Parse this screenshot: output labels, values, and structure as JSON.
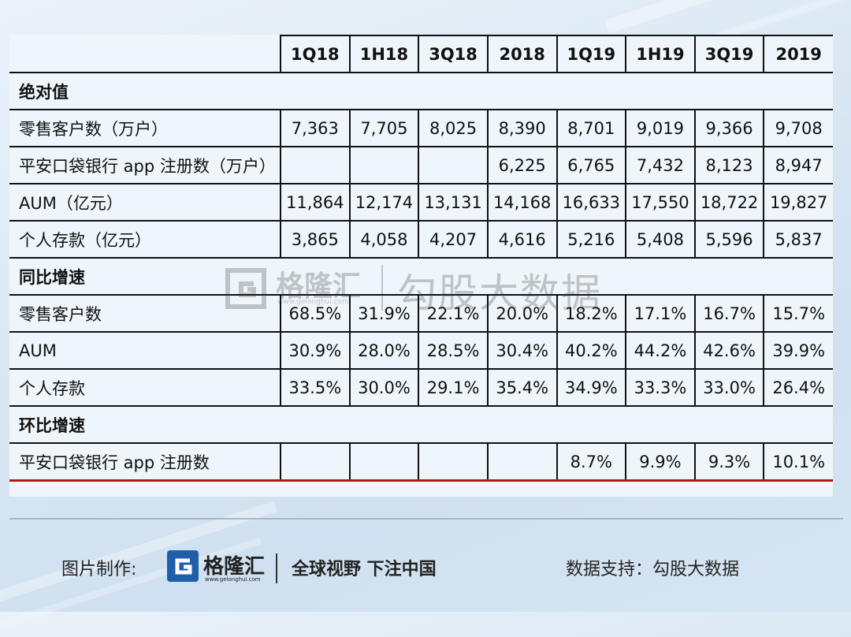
{
  "table": {
    "headers": [
      "",
      "1Q18",
      "1H18",
      "3Q18",
      "2018",
      "1Q19",
      "1H19",
      "3Q19",
      "2019"
    ],
    "sections": [
      {
        "title": "绝对值",
        "rows": [
          {
            "label": "零售客户数（万户）",
            "values": [
              "7,363",
              "7,705",
              "8,025",
              "8,390",
              "8,701",
              "9,019",
              "9,366",
              "9,708"
            ]
          },
          {
            "label": "平安口袋银行 app 注册数（万户）",
            "values": [
              "",
              "",
              "",
              "6,225",
              "6,765",
              "7,432",
              "8,123",
              "8,947"
            ]
          },
          {
            "label": "AUM（亿元）",
            "values": [
              "11,864",
              "12,174",
              "13,131",
              "14,168",
              "16,633",
              "17,550",
              "18,722",
              "19,827"
            ]
          },
          {
            "label": "个人存款（亿元）",
            "values": [
              "3,865",
              "4,058",
              "4,207",
              "4,616",
              "5,216",
              "5,408",
              "5,596",
              "5,837"
            ]
          }
        ]
      },
      {
        "title": "同比增速",
        "rows": [
          {
            "label": "零售客户数",
            "values": [
              "68.5%",
              "31.9%",
              "22.1%",
              "20.0%",
              "18.2%",
              "17.1%",
              "16.7%",
              "15.7%"
            ]
          },
          {
            "label": "AUM",
            "values": [
              "30.9%",
              "28.0%",
              "28.5%",
              "30.4%",
              "40.2%",
              "44.2%",
              "42.6%",
              "39.9%"
            ]
          },
          {
            "label": "个人存款",
            "values": [
              "33.5%",
              "30.0%",
              "29.1%",
              "35.4%",
              "34.9%",
              "33.3%",
              "33.0%",
              "26.4%"
            ]
          }
        ]
      },
      {
        "title": "环比增速",
        "rows": [
          {
            "label": "平安口袋银行 app 注册数",
            "values": [
              "",
              "",
              "",
              "",
              "8.7%",
              "9.9%",
              "9.3%",
              "10.1%"
            ]
          }
        ]
      }
    ]
  },
  "watermark": {
    "brand": "格隆汇",
    "url": "www.gelonghui.com",
    "data_source": "勾股大数据"
  },
  "footer": {
    "credit_label": "图片制作:",
    "brand": "格隆汇",
    "url": "www.gelonghui.com",
    "slogan": "全球视野 下注中国",
    "source_label": "数据支持：",
    "source_name": "勾股大数据"
  },
  "colors": {
    "logo_blue": "#1f5ea8",
    "bottom_rule": "#b01818"
  }
}
